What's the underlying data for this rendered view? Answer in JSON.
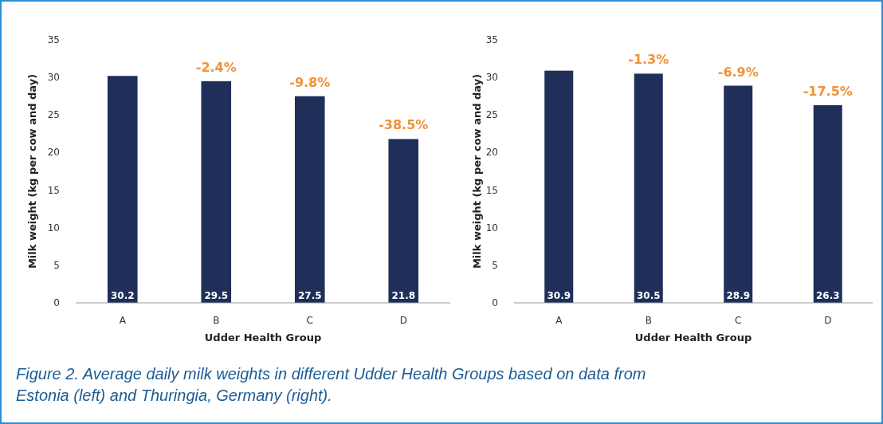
{
  "chart_data": [
    {
      "type": "bar",
      "categories": [
        "A",
        "B",
        "C",
        "D"
      ],
      "values": [
        30.2,
        29.5,
        27.5,
        21.8
      ],
      "color": "#1f2f5a",
      "data_labels": true,
      "ylim": [
        0,
        35
      ],
      "yticks": [
        0,
        5,
        10,
        15,
        20,
        25,
        30,
        35
      ],
      "xlabel": "Udder Health Group",
      "ylabel": "Milk weight (kg per cow and day)",
      "annotations": [
        {
          "text": "-2.4%",
          "x": "B",
          "y": 29.5
        },
        {
          "text": "-9.8%",
          "x": "C",
          "y": 27.5
        },
        {
          "text": "-38.5%",
          "x": "D",
          "y": 21.8
        },
        "Figure 2. Average daily milk weights in different Udder Health Groups based on data from Estonia (left) and Thuringia, Germany (right)."
      ]
    },
    {
      "type": "bar",
      "categories": [
        "A",
        "B",
        "C",
        "D"
      ],
      "values": [
        30.9,
        30.5,
        28.9,
        26.3
      ],
      "color": "#1f2f5a",
      "data_labels": true,
      "ylim": [
        0,
        35
      ],
      "yticks": [
        0,
        5,
        10,
        15,
        20,
        25,
        30,
        35
      ],
      "xlabel": "Udder Health Group",
      "ylabel": "Milk weight (kg per cow and day)",
      "annotations": [
        {
          "text": "-1.3%",
          "x": "B",
          "y": 30.5
        },
        {
          "text": "-6.9%",
          "x": "C",
          "y": 28.9
        },
        {
          "text": "-17.5%",
          "x": "D",
          "y": 26.3
        }
      ]
    }
  ]
}
